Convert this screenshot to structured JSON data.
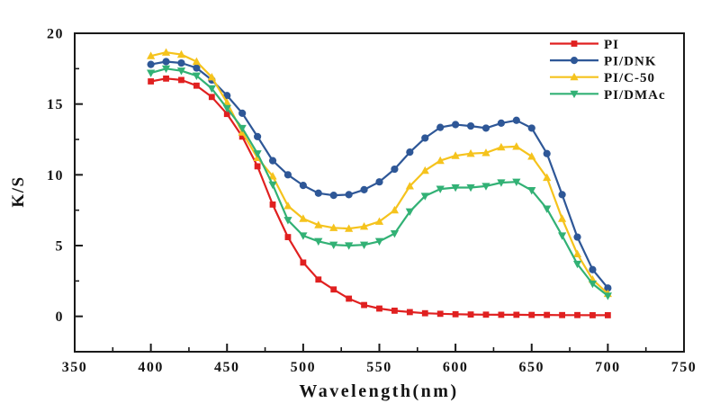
{
  "figure": {
    "background": "#ffffff",
    "frame_color": "#1a1a1a",
    "text_color": "#141414"
  },
  "chart_data": {
    "type": "line",
    "title": "",
    "xlabel": "Wavelength(nm)",
    "ylabel": "K/S",
    "xlim": [
      350,
      750
    ],
    "ylim": [
      -2.5,
      20
    ],
    "x_major_ticks": [
      350,
      400,
      450,
      500,
      550,
      600,
      650,
      700,
      750
    ],
    "x_minor_ticks": [
      375,
      425,
      475,
      525,
      575,
      625,
      675,
      725
    ],
    "y_major_ticks": [
      0,
      5,
      10,
      15,
      20
    ],
    "y_minor_ticks": [
      2.5,
      7.5,
      12.5,
      17.5
    ],
    "grid": false,
    "legend": {
      "position": "top-right-inside",
      "entries": [
        "PI",
        "PI/DNK",
        "PI/C-50",
        "PI/DMAc"
      ]
    },
    "x": [
      400,
      410,
      420,
      430,
      440,
      450,
      460,
      470,
      480,
      490,
      500,
      510,
      520,
      530,
      540,
      550,
      560,
      570,
      580,
      590,
      600,
      610,
      620,
      630,
      640,
      650,
      660,
      670,
      680,
      690,
      700
    ],
    "series": [
      {
        "name": "PI",
        "color": "#E02020",
        "marker": "square",
        "values": [
          16.6,
          16.8,
          16.7,
          16.3,
          15.5,
          14.3,
          12.7,
          10.6,
          7.9,
          5.6,
          3.8,
          2.6,
          1.9,
          1.25,
          0.8,
          0.55,
          0.4,
          0.3,
          0.22,
          0.18,
          0.15,
          0.13,
          0.12,
          0.11,
          0.11,
          0.1,
          0.1,
          0.09,
          0.09,
          0.08,
          0.08
        ]
      },
      {
        "name": "PI/DNK",
        "color": "#2E5797",
        "marker": "circle",
        "values": [
          17.8,
          18.0,
          17.9,
          17.55,
          16.7,
          15.6,
          14.35,
          12.7,
          11.0,
          10.0,
          9.25,
          8.7,
          8.55,
          8.6,
          8.95,
          9.5,
          10.4,
          11.6,
          12.6,
          13.35,
          13.55,
          13.45,
          13.3,
          13.65,
          13.85,
          13.3,
          11.5,
          8.6,
          5.6,
          3.3,
          2.0
        ]
      },
      {
        "name": "PI/C-50",
        "color": "#F5C31D",
        "marker": "triangle-up",
        "values": [
          18.4,
          18.65,
          18.5,
          18.0,
          16.9,
          15.1,
          13.0,
          11.2,
          9.9,
          7.8,
          6.9,
          6.45,
          6.25,
          6.2,
          6.35,
          6.7,
          7.5,
          9.2,
          10.3,
          11.0,
          11.35,
          11.5,
          11.55,
          11.95,
          12.0,
          11.3,
          9.8,
          6.9,
          4.4,
          2.6,
          1.6
        ]
      },
      {
        "name": "PI/DMAc",
        "color": "#32B175",
        "marker": "triangle-down",
        "values": [
          17.2,
          17.5,
          17.35,
          17.0,
          16.1,
          14.7,
          13.3,
          11.5,
          9.3,
          6.8,
          5.7,
          5.3,
          5.05,
          5.0,
          5.05,
          5.3,
          5.85,
          7.4,
          8.5,
          9.0,
          9.1,
          9.1,
          9.2,
          9.45,
          9.5,
          8.9,
          7.6,
          5.7,
          3.7,
          2.3,
          1.45
        ]
      }
    ]
  }
}
